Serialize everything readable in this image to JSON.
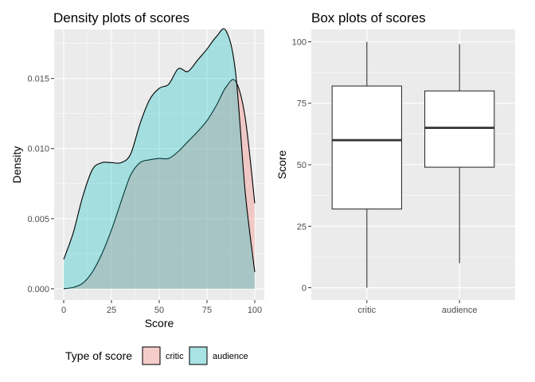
{
  "chart_data": [
    {
      "type": "area",
      "title": "Density plots of scores",
      "xlabel": "Score",
      "ylabel": "Density",
      "xlim": [
        -5,
        105
      ],
      "ylim": [
        -0.0008,
        0.0185
      ],
      "x_ticks": [
        "0",
        "25",
        "50",
        "75",
        "100"
      ],
      "y_ticks": [
        "0.000",
        "0.005",
        "0.010",
        "0.015"
      ],
      "grid": true,
      "series": [
        {
          "name": "critic",
          "color": "#F8766D",
          "x": [
            0,
            5,
            10,
            15,
            20,
            25,
            30,
            35,
            40,
            45,
            50,
            55,
            60,
            65,
            70,
            75,
            80,
            85,
            90,
            95,
            100
          ],
          "y": [
            1e-05,
            0.0001,
            0.0004,
            0.0012,
            0.0025,
            0.0042,
            0.0062,
            0.0081,
            0.009,
            0.0092,
            0.0093,
            0.0093,
            0.0098,
            0.0105,
            0.0112,
            0.012,
            0.0131,
            0.0144,
            0.0148,
            0.0122,
            0.0061
          ]
        },
        {
          "name": "audience",
          "color": "#00BFC4",
          "x": [
            0,
            5,
            10,
            15,
            20,
            25,
            30,
            35,
            40,
            45,
            50,
            55,
            60,
            65,
            70,
            75,
            80,
            85,
            90,
            95,
            100
          ],
          "y": [
            0.0021,
            0.004,
            0.0066,
            0.0085,
            0.009,
            0.009,
            0.009,
            0.0096,
            0.0118,
            0.0135,
            0.0143,
            0.0146,
            0.0157,
            0.0155,
            0.0163,
            0.0171,
            0.018,
            0.0184,
            0.0154,
            0.0069,
            0.0012
          ]
        }
      ],
      "legend": {
        "title": "Type of score",
        "position": "bottom",
        "items": [
          {
            "label": "critic",
            "color": "#F8766D"
          },
          {
            "label": "audience",
            "color": "#00BFC4"
          }
        ]
      }
    },
    {
      "type": "box",
      "title": "Box plots of scores",
      "xlabel": "",
      "ylabel": "Score",
      "ylim": [
        -5,
        105
      ],
      "y_ticks": [
        "0",
        "25",
        "50",
        "75",
        "100"
      ],
      "categories": [
        "critic",
        "audience"
      ],
      "grid": true,
      "boxes": [
        {
          "name": "critic",
          "min": 0,
          "q1": 32,
          "median": 60,
          "q3": 82,
          "max": 100
        },
        {
          "name": "audience",
          "min": 10,
          "q1": 49,
          "median": 65,
          "q3": 80,
          "max": 99
        }
      ]
    }
  ]
}
